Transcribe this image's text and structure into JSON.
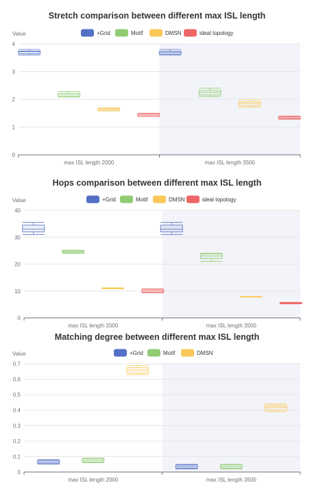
{
  "colors": {
    "grid": "#5470c6",
    "motif": "#91cc75",
    "dmsn": "#fac858",
    "ideal": "#ee6666",
    "highlight": "#f3f4f9",
    "gridline": "#e6e6e6",
    "axis": "#6e7079",
    "title": "#333333"
  },
  "chart_data": [
    {
      "type": "boxplot",
      "title": "Stretch comparison between different max ISL length",
      "ylabel": "Value",
      "ylim": [
        0,
        4
      ],
      "yticks": [
        "0",
        "1",
        "2",
        "3",
        "4"
      ],
      "categories": [
        "max ISL length 2000",
        "max ISL length 3500"
      ],
      "highlighted_category": 1,
      "legend": [
        "+Grid",
        "Motif",
        "DMSN",
        "ideal topology"
      ],
      "series": [
        {
          "color_key": "grid",
          "boxes": [
            [
              3.6,
              3.64,
              3.72,
              3.74,
              3.8
            ],
            [
              3.6,
              3.63,
              3.7,
              3.73,
              3.8
            ]
          ]
        },
        {
          "color_key": "motif",
          "boxes": [
            [
              2.08,
              2.1,
              2.17,
              2.22,
              2.28
            ],
            [
              2.1,
              2.15,
              2.25,
              2.32,
              2.4
            ]
          ]
        },
        {
          "color_key": "dmsn",
          "boxes": [
            [
              1.58,
              1.6,
              1.65,
              1.67,
              1.7
            ],
            [
              1.72,
              1.76,
              1.85,
              1.92,
              2.0
            ]
          ]
        },
        {
          "color_key": "ideal",
          "boxes": [
            [
              1.38,
              1.38,
              1.43,
              1.48,
              1.5
            ],
            [
              1.28,
              1.3,
              1.33,
              1.37,
              1.4
            ]
          ]
        }
      ]
    },
    {
      "type": "boxplot",
      "title": "Hops comparison between different max ISL length",
      "ylabel": "Value",
      "ylim": [
        0,
        40
      ],
      "yticks": [
        "0",
        "10",
        "20",
        "30",
        "40"
      ],
      "categories": [
        "max ISL length 2000",
        "max ISL length 3500"
      ],
      "highlighted_category": 1,
      "legend": [
        "+Grid",
        "Motif",
        "DMSN",
        "ideal topology"
      ],
      "series": [
        {
          "color_key": "grid",
          "boxes": [
            [
              31,
              32,
              33,
              34.5,
              35.5
            ],
            [
              31,
              32,
              33,
              34.5,
              35.5
            ]
          ]
        },
        {
          "color_key": "motif",
          "boxes": [
            [
              24,
              24.2,
              24.6,
              25,
              25.2
            ],
            [
              21,
              22,
              23,
              23.8,
              24
            ]
          ]
        },
        {
          "color_key": "dmsn",
          "boxes": [
            [
              10.8,
              10.9,
              11,
              11.1,
              11.2
            ],
            [
              7.7,
              7.8,
              7.9,
              8,
              8
            ]
          ]
        },
        {
          "color_key": "ideal",
          "boxes": [
            [
              9.3,
              9.5,
              10,
              10.5,
              10.8
            ],
            [
              5.2,
              5.3,
              5.5,
              5.7,
              5.8
            ]
          ]
        }
      ]
    },
    {
      "type": "boxplot",
      "title": "Matching degree between different max ISL length",
      "ylabel": "Value",
      "ylim": [
        0,
        0.7
      ],
      "yticks": [
        "0",
        "0.1",
        "0.2",
        "0.3",
        "0.4",
        "0.5",
        "0.6",
        "0.7"
      ],
      "categories": [
        "max ISL length 2000",
        "max ISL length 3500"
      ],
      "highlighted_category": 1,
      "legend": [
        "+Grid",
        "Motif",
        "DMSN"
      ],
      "series": [
        {
          "color_key": "grid",
          "boxes": [
            [
              0.05,
              0.055,
              0.065,
              0.075,
              0.08
            ],
            [
              0.02,
              0.025,
              0.035,
              0.045,
              0.05
            ]
          ]
        },
        {
          "color_key": "motif",
          "boxes": [
            [
              0.06,
              0.065,
              0.075,
              0.085,
              0.09
            ],
            [
              0.02,
              0.025,
              0.035,
              0.045,
              0.05
            ]
          ]
        },
        {
          "color_key": "dmsn",
          "boxes": [
            [
              0.63,
              0.64,
              0.66,
              0.675,
              0.69
            ],
            [
              0.39,
              0.4,
              0.42,
              0.43,
              0.44
            ]
          ]
        }
      ]
    }
  ]
}
